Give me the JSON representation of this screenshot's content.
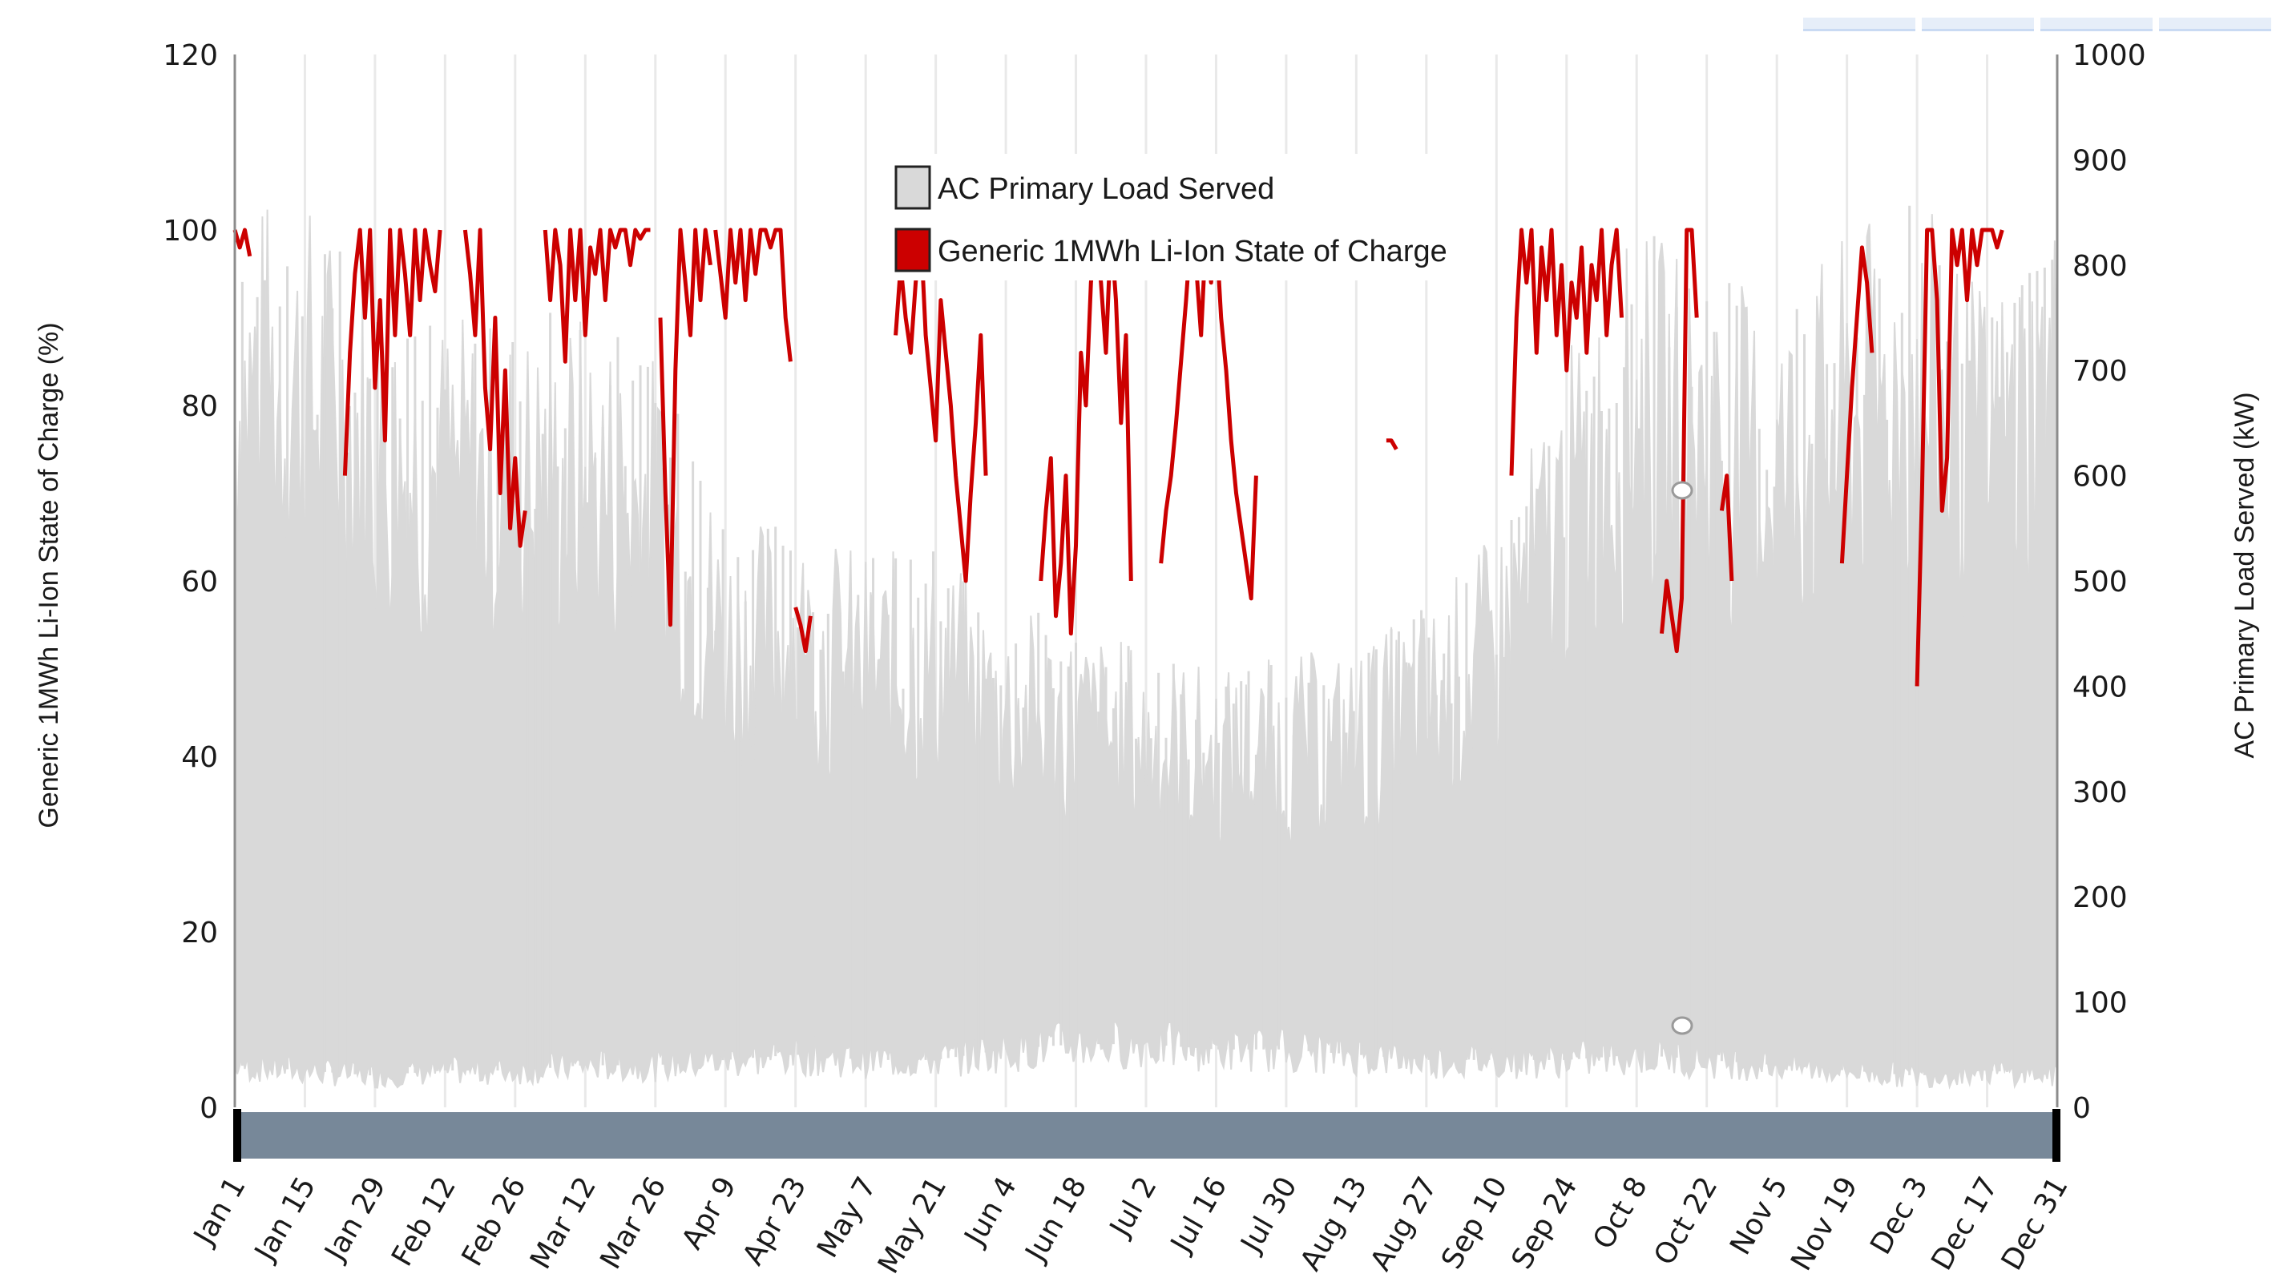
{
  "chart_data": {
    "type": "line",
    "x_range": [
      "Jan 1",
      "Dec 31"
    ],
    "x_tick_labels": [
      "Jan 1",
      "Jan 15",
      "Jan 29",
      "Feb 12",
      "Feb 26",
      "Mar 12",
      "Mar 26",
      "Apr 9",
      "Apr 23",
      "May 7",
      "May 21",
      "Jun 4",
      "Jun 18",
      "Jul 2",
      "Jul 16",
      "Jul 30",
      "Aug 13",
      "Aug 27",
      "Sep 10",
      "Sep 24",
      "Oct 8",
      "Oct 22",
      "Nov 5",
      "Nov 19",
      "Dec 3",
      "Dec 17",
      "Dec 31"
    ],
    "y_left": {
      "label": "Generic 1MWh Li-Ion State of Charge (%)",
      "range": [
        0,
        120
      ],
      "ticks": [
        0,
        20,
        40,
        60,
        80,
        100,
        120
      ]
    },
    "y_right": {
      "label": "AC Primary Load Served (kW)",
      "range": [
        0,
        1000
      ],
      "ticks": [
        0,
        100,
        200,
        300,
        400,
        500,
        600,
        700,
        800,
        900,
        1000
      ]
    },
    "legend": {
      "placement": "top-center"
    },
    "series": [
      {
        "name": "AC Primary Load Served",
        "axis": "right",
        "color": "#d9d9d9",
        "band_samples": {
          "day": [
            1,
            15,
            29,
            43,
            57,
            71,
            85,
            99,
            113,
            127,
            141,
            155,
            169,
            183,
            197,
            211,
            225,
            239,
            253,
            267,
            281,
            295,
            309,
            323,
            337,
            351,
            365
          ],
          "low_kW": [
            40,
            35,
            30,
            35,
            35,
            40,
            40,
            45,
            50,
            45,
            45,
            55,
            60,
            60,
            55,
            55,
            50,
            45,
            45,
            45,
            50,
            45,
            40,
            35,
            30,
            35,
            30
          ],
          "high_kW": [
            870,
            870,
            790,
            760,
            750,
            760,
            720,
            560,
            560,
            530,
            530,
            480,
            460,
            440,
            420,
            430,
            440,
            480,
            550,
            720,
            840,
            800,
            770,
            830,
            870,
            780,
            860
          ]
        }
      },
      {
        "name": "Generic 1MWh Li-Ion State of Charge",
        "axis": "left",
        "color": "#cc0000",
        "segments": [
          {
            "x": [
              1,
              2,
              3,
              4
            ],
            "y": [
              100,
              98,
              100,
              97
            ]
          },
          {
            "x": [
              23,
              24,
              25,
              26,
              27,
              28,
              29,
              30,
              31,
              32,
              33,
              34,
              35,
              36,
              37,
              38,
              39,
              40,
              41,
              42
            ],
            "y": [
              72,
              86,
              95,
              100,
              90,
              100,
              82,
              92,
              76,
              100,
              88,
              100,
              95,
              88,
              100,
              92,
              100,
              96,
              93,
              100
            ]
          },
          {
            "x": [
              47,
              48,
              49,
              50,
              51,
              52,
              53,
              54,
              55,
              56,
              57,
              58,
              59
            ],
            "y": [
              100,
              95,
              88,
              100,
              82,
              75,
              90,
              70,
              84,
              66,
              74,
              64,
              68
            ]
          },
          {
            "x": [
              63,
              64,
              65,
              66,
              67,
              68,
              69,
              70,
              71,
              72,
              73,
              74,
              75,
              76,
              77,
              78,
              79,
              80,
              81,
              82,
              83,
              84
            ],
            "y": [
              100,
              92,
              100,
              96,
              85,
              100,
              92,
              100,
              88,
              98,
              95,
              100,
              92,
              100,
              98,
              100,
              100,
              96,
              100,
              99,
              100,
              100
            ]
          },
          {
            "x": [
              86,
              87,
              88,
              89,
              90,
              91,
              92,
              93,
              94,
              95,
              96
            ],
            "y": [
              90,
              70,
              55,
              84,
              100,
              94,
              88,
              100,
              92,
              100,
              96
            ]
          },
          {
            "x": [
              97,
              98,
              99,
              100,
              101,
              102,
              103,
              104,
              105,
              106,
              107,
              108,
              109,
              110,
              111,
              112
            ],
            "y": [
              100,
              95,
              90,
              100,
              94,
              100,
              92,
              100,
              95,
              100,
              100,
              98,
              100,
              100,
              90,
              85
            ]
          },
          {
            "x": [
              113,
              114,
              115,
              116
            ],
            "y": [
              57,
              55,
              52,
              56
            ]
          },
          {
            "x": [
              133,
              134,
              135,
              136,
              137,
              138,
              139,
              140,
              141,
              142,
              143,
              144,
              145,
              146,
              147,
              148,
              149,
              150,
              151
            ],
            "y": [
              88,
              96,
              90,
              86,
              94,
              100,
              88,
              82,
              76,
              92,
              86,
              80,
              72,
              66,
              60,
              70,
              78,
              88,
              72
            ]
          },
          {
            "x": [
              162,
              163,
              164,
              165,
              166,
              167,
              168,
              169,
              170,
              171,
              172,
              173,
              174,
              175,
              176,
              177,
              178,
              179,
              180
            ],
            "y": [
              60,
              68,
              74,
              56,
              62,
              72,
              54,
              64,
              86,
              80,
              94,
              100,
              94,
              86,
              100,
              92,
              78,
              88,
              60
            ]
          },
          {
            "x": [
              186,
              187,
              188,
              189,
              190,
              191,
              192,
              193,
              194,
              195,
              196,
              197,
              198,
              199,
              200,
              201,
              202,
              203,
              204,
              205
            ],
            "y": [
              62,
              68,
              72,
              78,
              85,
              92,
              100,
              96,
              88,
              100,
              94,
              100,
              90,
              84,
              76,
              70,
              66,
              62,
              58,
              72
            ]
          },
          {
            "x": [
              231,
              232,
              233
            ],
            "y": [
              76,
              76,
              75
            ]
          },
          {
            "x": [
              256,
              257,
              258,
              259,
              260,
              261,
              262,
              263,
              264,
              265,
              266,
              267,
              268,
              269,
              270,
              271,
              272,
              273,
              274,
              275,
              276,
              277,
              278
            ],
            "y": [
              72,
              90,
              100,
              94,
              100,
              86,
              98,
              92,
              100,
              88,
              96,
              84,
              94,
              90,
              98,
              86,
              96,
              92,
              100,
              88,
              96,
              100,
              90
            ]
          },
          {
            "x": [
              286,
              287,
              288,
              289,
              290,
              291,
              292,
              293
            ],
            "y": [
              54,
              60,
              56,
              52,
              58,
              100,
              100,
              90
            ]
          },
          {
            "x": [
              298,
              299,
              300
            ],
            "y": [
              68,
              72,
              60
            ]
          },
          {
            "x": [
              322,
              323,
              324,
              325,
              326,
              327,
              328
            ],
            "y": [
              62,
              72,
              82,
              90,
              98,
              94,
              86
            ]
          },
          {
            "x": [
              337,
              338,
              339,
              340,
              341,
              342,
              343,
              344,
              345,
              346,
              347,
              348,
              349,
              350,
              351,
              352,
              353,
              354
            ],
            "y": [
              48,
              70,
              100,
              100,
              92,
              68,
              74,
              100,
              96,
              100,
              92,
              100,
              96,
              100,
              100,
              100,
              98,
              100
            ]
          }
        ]
      }
    ]
  }
}
